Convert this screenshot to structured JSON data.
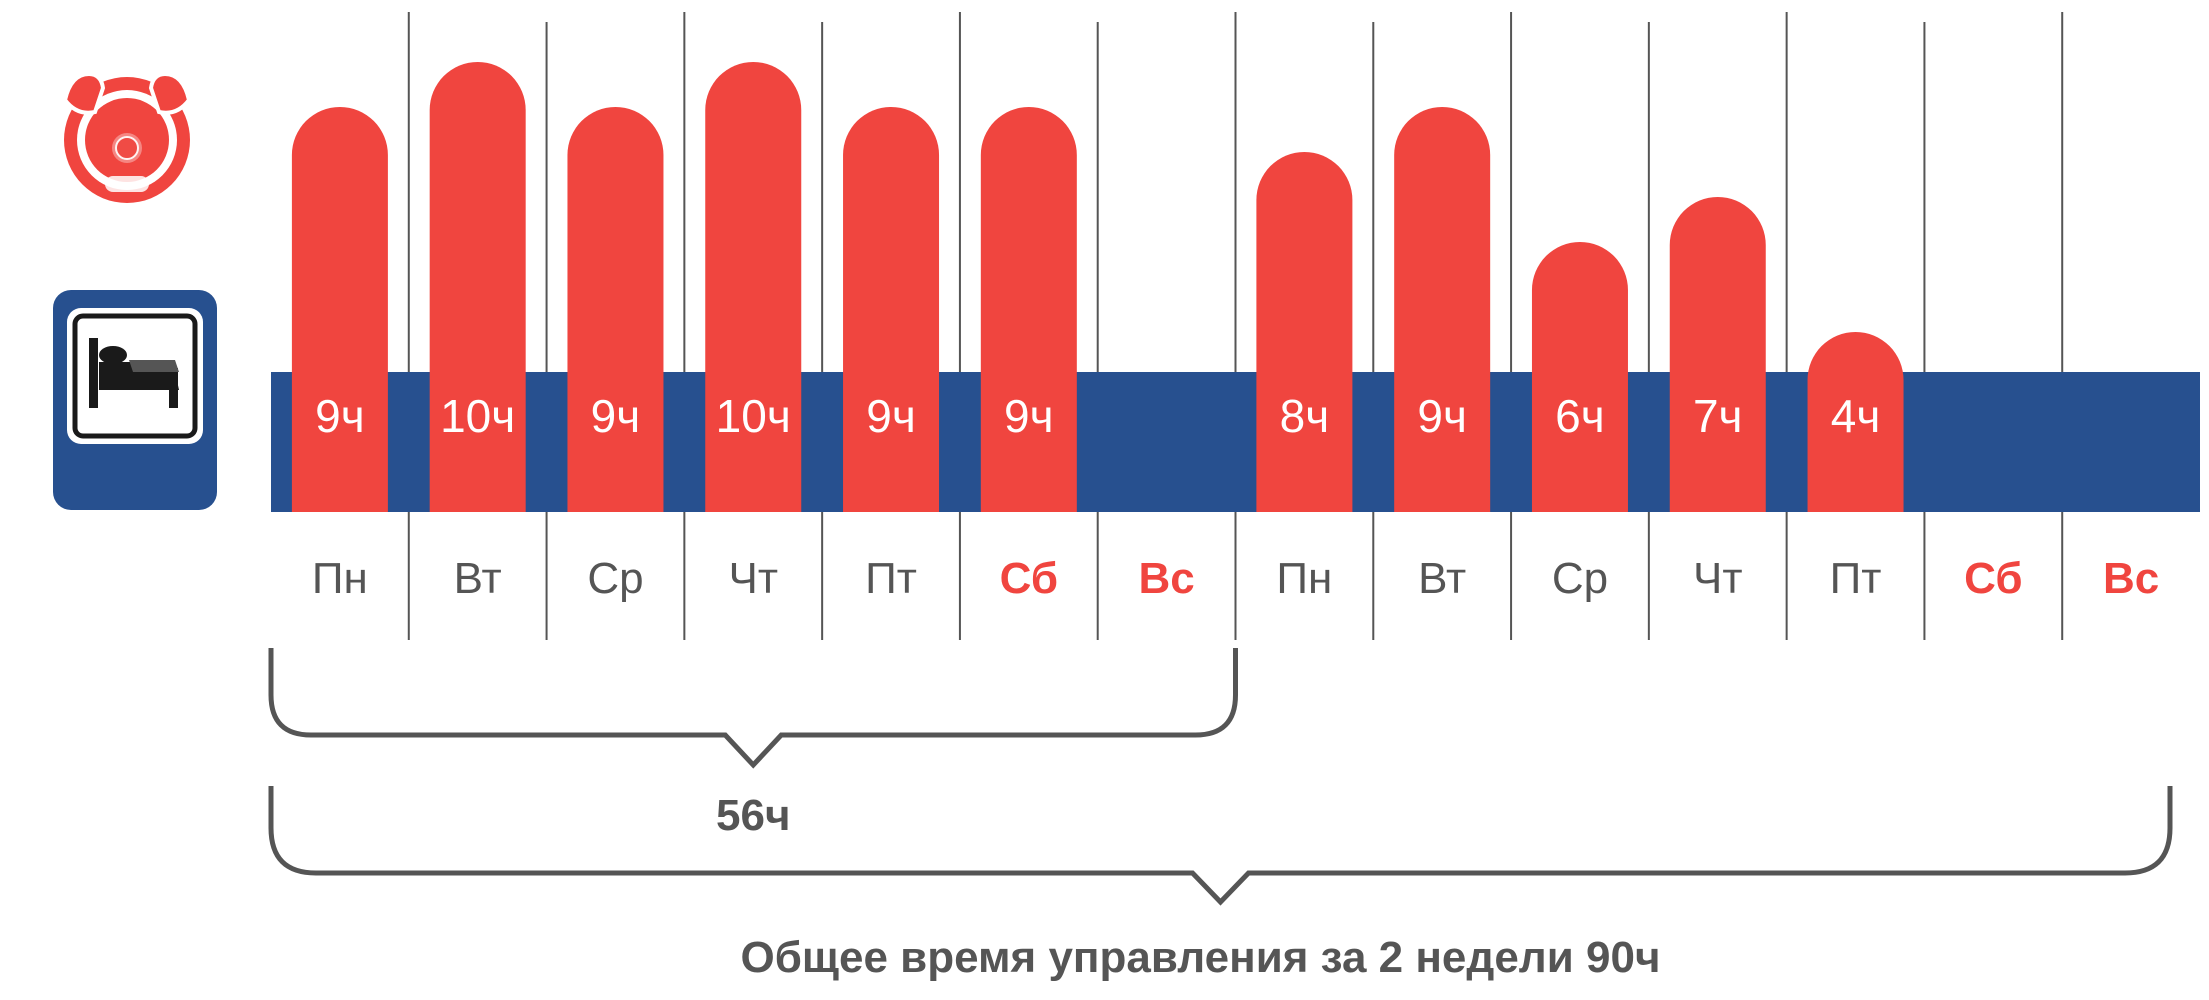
{
  "chart_data": {
    "type": "bar",
    "unit": "ч",
    "categories": [
      "Пн",
      "Вт",
      "Ср",
      "Чт",
      "Пт",
      "Сб",
      "Вс",
      "Пн",
      "Вт",
      "Ср",
      "Чт",
      "Пт",
      "Сб",
      "Вс"
    ],
    "weekend": [
      false,
      false,
      false,
      false,
      false,
      true,
      true,
      false,
      false,
      false,
      false,
      false,
      true,
      true
    ],
    "values": [
      9,
      10,
      9,
      10,
      9,
      9,
      null,
      8,
      9,
      6,
      7,
      4,
      null,
      null
    ],
    "value_labels": [
      "9ч",
      "10ч",
      "9ч",
      "10ч",
      "9ч",
      "9ч",
      "",
      "8ч",
      "9ч",
      "6ч",
      "7ч",
      "4ч",
      "",
      ""
    ],
    "brackets": [
      {
        "label": "56ч",
        "from_index": 0,
        "to_index": 6
      },
      {
        "label": "Общее время управления за 2 недели 90ч",
        "from_index": 0,
        "to_index": 13
      }
    ],
    "icons": [
      "steering-wheel-icon",
      "bed-icon"
    ]
  },
  "colors": {
    "bar": "#f0453f",
    "rest_band": "#27508f",
    "weekday_label": "#555555",
    "weekend_label": "#f0453f",
    "bracket": "#555555",
    "grid_line": "#555555"
  }
}
